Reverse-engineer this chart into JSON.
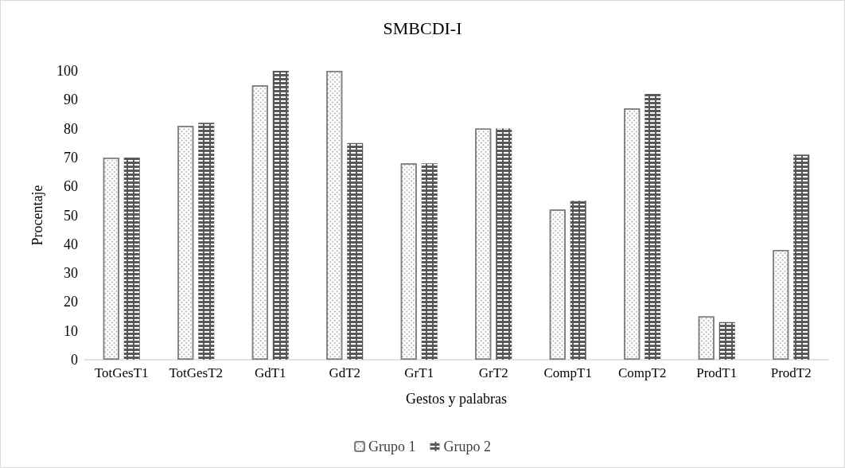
{
  "chart_data": {
    "type": "bar",
    "title": "SMBCDI-I",
    "xlabel": "Gestos y palabras",
    "ylabel": "Procentaje",
    "categories": [
      "TotGesT1",
      "TotGesT2",
      "GdT1",
      "GdT2",
      "GrT1",
      "GrT2",
      "CompT1",
      "CompT2",
      "ProdT1",
      "ProdT2"
    ],
    "series": [
      {
        "name": "Grupo 1",
        "color": "#ffffff",
        "values": [
          70,
          81,
          95,
          100,
          68,
          80,
          52,
          87,
          15,
          38
        ]
      },
      {
        "name": "Grupo 2",
        "color": "#595959",
        "values": [
          70,
          82,
          100,
          75,
          68,
          80,
          55,
          92,
          13,
          71
        ]
      }
    ],
    "ylim": [
      0,
      100
    ],
    "yticks": [
      0,
      10,
      20,
      30,
      40,
      50,
      60,
      70,
      80,
      90,
      100
    ],
    "grid": false,
    "legend": "bottom"
  }
}
